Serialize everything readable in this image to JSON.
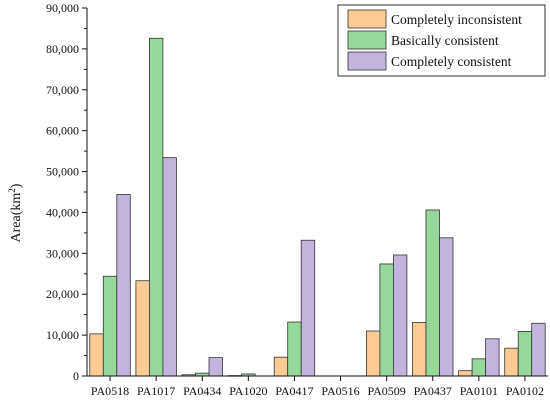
{
  "chart_data": {
    "type": "bar",
    "ylabel_prefix": "Area(km",
    "ylabel_superscript": "2",
    "ylabel_suffix": ")",
    "ylim": [
      0,
      90000
    ],
    "ytick_values": [
      0,
      10000,
      20000,
      30000,
      40000,
      50000,
      60000,
      70000,
      80000,
      90000
    ],
    "ytick_labels": [
      "0",
      "10,000",
      "20,000",
      "30,000",
      "40,000",
      "50,000",
      "60,000",
      "70,000",
      "80,000",
      "90,000"
    ],
    "categories": [
      "PA0518",
      "PA1017",
      "PA0434",
      "PA1020",
      "PA0417",
      "PA0516",
      "PA0509",
      "PA0437",
      "PA0101",
      "PA0102"
    ],
    "series": [
      {
        "name": "Completely inconsistent",
        "color": "#FCCB94",
        "values": [
          10300,
          23300,
          300,
          100,
          4600,
          0,
          11000,
          13100,
          1300,
          6800
        ]
      },
      {
        "name": "Basically consistent",
        "color": "#96D79A",
        "values": [
          24400,
          82600,
          700,
          500,
          13200,
          0,
          27400,
          40600,
          4200,
          10900
        ]
      },
      {
        "name": "Completely consistent",
        "color": "#C3B4DE",
        "values": [
          44400,
          53400,
          4500,
          0,
          33200,
          0,
          29600,
          33800,
          9100,
          12900
        ]
      }
    ],
    "legend_position": "top-right",
    "grid": false
  }
}
